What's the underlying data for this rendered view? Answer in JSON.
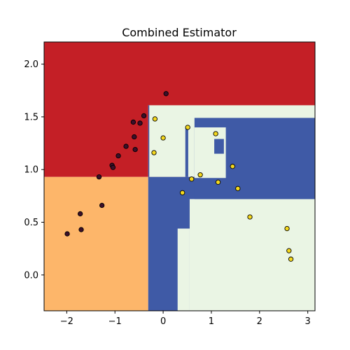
{
  "chart_data": {
    "type": "scatter",
    "title": "Combined Estimator",
    "xlabel": "",
    "ylabel": "",
    "xlim": [
      -2.47,
      3.15
    ],
    "ylim": [
      -0.34,
      2.21
    ],
    "x_ticks": [
      -2,
      -1,
      0,
      1,
      2,
      3
    ],
    "y_ticks": [
      0.0,
      0.5,
      1.0,
      1.5,
      2.0
    ],
    "x_tick_labels": [
      "−2",
      "−1",
      "0",
      "1",
      "2",
      "3"
    ],
    "y_tick_labels": [
      "0.0",
      "0.5",
      "1.0",
      "1.5",
      "2.0"
    ],
    "grid": false,
    "colors": {
      "class_0_region_upper": "#c41f26",
      "class_0_region_lower": "#fdb66a",
      "class_1_region_blue": "#3f5aa6",
      "class_1_region_light": "#eaf5e4",
      "class_0_points": "#3b0f2a",
      "class_1_points": "#f4d81e",
      "point_edge": "#000000"
    },
    "decision_regions": [
      {
        "color_key": "class_0_region_upper",
        "x": [
          -2.47,
          3.15
        ],
        "y": [
          0.93,
          2.21
        ]
      },
      {
        "color_key": "class_0_region_lower",
        "x": [
          -2.47,
          -0.31
        ],
        "y": [
          -0.34,
          0.93
        ]
      },
      {
        "color_key": "class_1_region_light",
        "x": [
          -0.31,
          3.15
        ],
        "y": [
          0.93,
          1.61
        ]
      },
      {
        "color_key": "class_1_region_blue",
        "x": [
          -0.31,
          3.15
        ],
        "y": [
          -0.34,
          0.93
        ]
      },
      {
        "color_key": "class_1_region_light",
        "x": [
          0.55,
          3.15
        ],
        "y": [
          -0.34,
          0.72
        ]
      },
      {
        "color_key": "class_1_region_light",
        "x": [
          0.3,
          0.55
        ],
        "y": [
          -0.34,
          0.44
        ]
      },
      {
        "color_key": "class_1_region_blue",
        "x": [
          0.65,
          3.15
        ],
        "y": [
          0.72,
          1.49
        ]
      },
      {
        "color_key": "class_1_region_light",
        "x": [
          0.65,
          1.3
        ],
        "y": [
          0.92,
          1.4
        ]
      },
      {
        "color_key": "class_1_region_blue",
        "x": [
          0.46,
          0.52
        ],
        "y": [
          0.93,
          1.4
        ]
      },
      {
        "color_key": "class_1_region_blue",
        "x": [
          1.06,
          1.26
        ],
        "y": [
          1.15,
          1.29
        ]
      },
      {
        "color_key": "class_1_region_blue",
        "x": [
          -0.31,
          -0.31
        ],
        "y": [
          0.93,
          1.61
        ]
      }
    ],
    "series": [
      {
        "color_key": "class_0_points",
        "points": [
          [
            0.06,
            1.72
          ],
          [
            -0.4,
            1.51
          ],
          [
            -0.62,
            1.45
          ],
          [
            -0.48,
            1.44
          ],
          [
            -0.6,
            1.31
          ],
          [
            -0.77,
            1.22
          ],
          [
            -0.58,
            1.19
          ],
          [
            -0.93,
            1.13
          ],
          [
            -1.06,
            1.04
          ],
          [
            -1.04,
            1.02
          ],
          [
            -1.33,
            0.93
          ],
          [
            -1.27,
            0.66
          ],
          [
            -1.72,
            0.58
          ],
          [
            -1.7,
            0.43
          ],
          [
            -1.99,
            0.39
          ]
        ]
      },
      {
        "color_key": "class_1_points",
        "points": [
          [
            -0.17,
            1.48
          ],
          [
            0.51,
            1.4
          ],
          [
            1.09,
            1.34
          ],
          [
            0.0,
            1.3
          ],
          [
            -0.19,
            1.16
          ],
          [
            1.44,
            1.03
          ],
          [
            0.77,
            0.95
          ],
          [
            0.59,
            0.91
          ],
          [
            1.14,
            0.88
          ],
          [
            1.55,
            0.82
          ],
          [
            0.4,
            0.78
          ],
          [
            1.8,
            0.55
          ],
          [
            2.57,
            0.44
          ],
          [
            2.61,
            0.23
          ],
          [
            2.65,
            0.15
          ]
        ]
      }
    ]
  }
}
